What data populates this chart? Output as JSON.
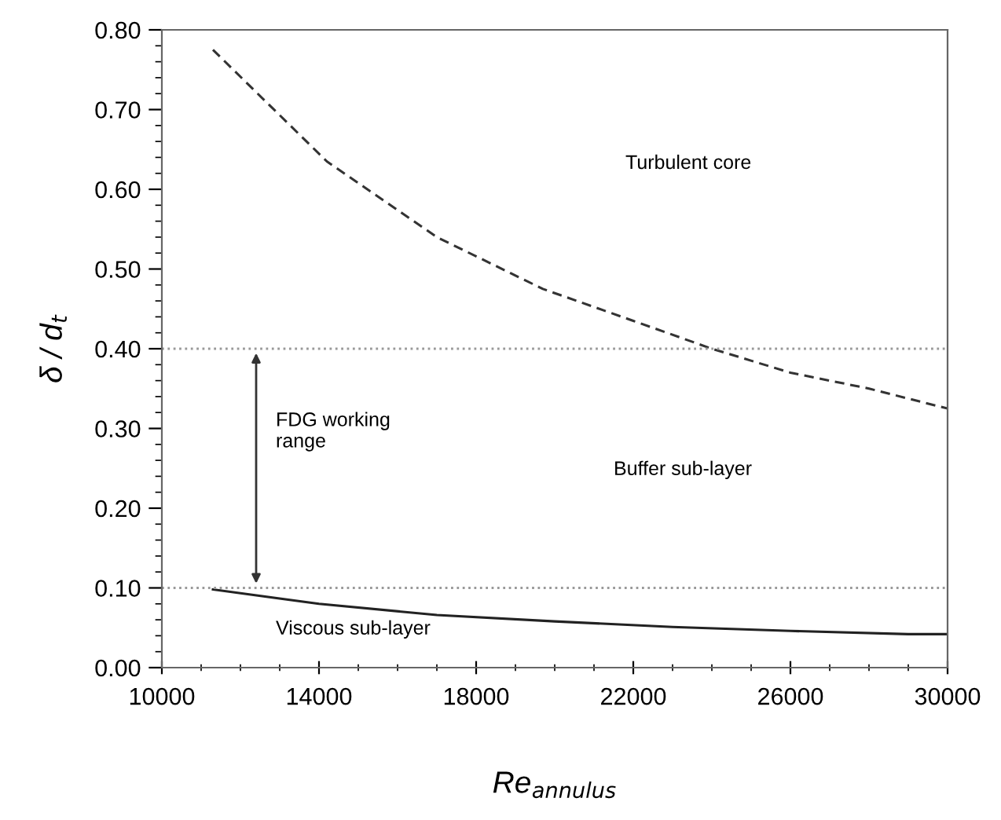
{
  "chart_data": {
    "type": "line",
    "xlabel": "Re$_{annulus}$",
    "ylabel": "δ / d$_{t}$",
    "series": [
      {
        "color": "#333333",
        "line_style": "dashed",
        "x": [
          11300,
          14200,
          17000,
          19700,
          22000,
          24000,
          26000,
          28000,
          30000
        ],
        "values": [
          0.775,
          0.635,
          0.54,
          0.475,
          0.435,
          0.4,
          0.37,
          0.35,
          0.325
        ]
      },
      {
        "color": "#222222",
        "line_style": "solid",
        "x": [
          11300,
          14000,
          17000,
          20000,
          23000,
          26000,
          29000,
          30000
        ],
        "values": [
          0.098,
          0.08,
          0.066,
          0.058,
          0.051,
          0.046,
          0.042,
          0.042
        ]
      }
    ],
    "xlim": [
      10000,
      30000
    ],
    "xticks": [
      10000,
      14000,
      18000,
      22000,
      26000,
      30000
    ],
    "ylim": [
      0,
      0.8
    ],
    "yticks": [
      {
        "value": 0,
        "label": "0.00"
      },
      {
        "value": 0.1,
        "label": "0.10"
      },
      {
        "value": 0.2,
        "label": "0.20"
      },
      {
        "value": 0.3,
        "label": "0.30"
      },
      {
        "value": 0.4,
        "label": "0.40"
      },
      {
        "value": 0.5,
        "label": "0.50"
      },
      {
        "value": 0.6,
        "label": "0.60"
      },
      {
        "value": 0.7,
        "label": "0.70"
      },
      {
        "value": 0.8,
        "label": "0.80"
      }
    ],
    "ref_lines": [
      {
        "axis": "y",
        "value": 0.4,
        "color": "#999999",
        "line_style": "dotted"
      },
      {
        "axis": "y",
        "value": 0.1,
        "color": "#999999",
        "line_style": "dotted"
      }
    ],
    "annotations": [
      "Turbulent core",
      "FDG working\nrange",
      "Buffer sub-layer",
      "Viscous sub-layer"
    ],
    "grid": false,
    "legend": false,
    "marker": "none"
  }
}
